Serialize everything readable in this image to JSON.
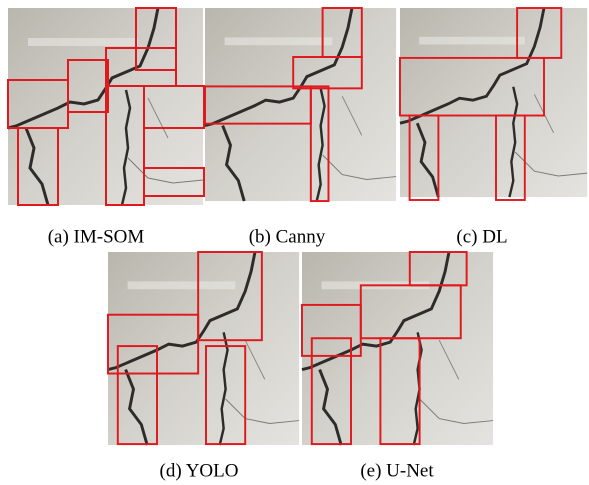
{
  "figure": {
    "panels": [
      {
        "caption": "(a) IM-SOM"
      },
      {
        "caption": "(b) Canny"
      },
      {
        "caption": "(c) DL"
      },
      {
        "caption": "(d) YOLO"
      },
      {
        "caption": "(e) U-Net"
      }
    ]
  }
}
